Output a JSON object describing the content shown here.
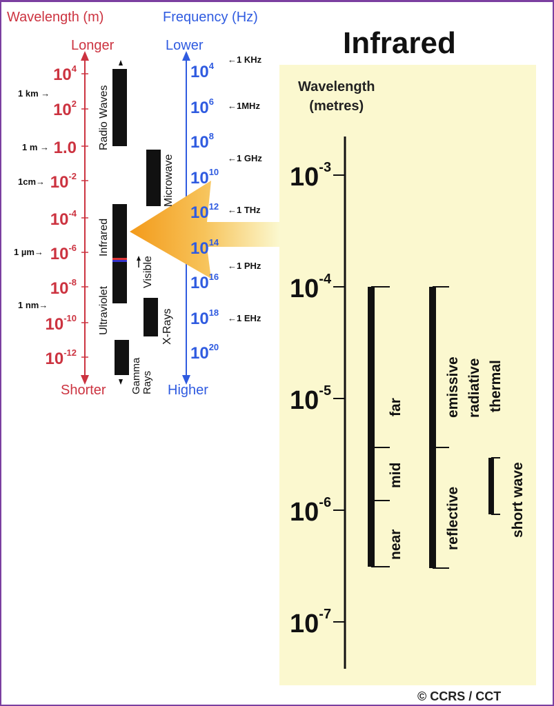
{
  "left": {
    "wavelength_header": "Wavelength (m)",
    "frequency_header": "Frequency (Hz)",
    "longer": "Longer",
    "shorter": "Shorter",
    "lower": "Lower",
    "higher": "Higher",
    "wavelength_ticks": [
      {
        "base": "10",
        "exp": "4"
      },
      {
        "base": "10",
        "exp": "2"
      },
      {
        "base": "1.0",
        "exp": ""
      },
      {
        "base": "10",
        "exp": "-2"
      },
      {
        "base": "10",
        "exp": "-4"
      },
      {
        "base": "10",
        "exp": "-6"
      },
      {
        "base": "10",
        "exp": "-8"
      },
      {
        "base": "10",
        "exp": "-10"
      },
      {
        "base": "10",
        "exp": "-12"
      }
    ],
    "wavelength_markers": [
      "1 km",
      "1 m",
      "1cm",
      "1 µm",
      "1 nm"
    ],
    "frequency_ticks": [
      {
        "base": "10",
        "exp": "4"
      },
      {
        "base": "10",
        "exp": "6"
      },
      {
        "base": "10",
        "exp": "8"
      },
      {
        "base": "10",
        "exp": "10"
      },
      {
        "base": "10",
        "exp": "12"
      },
      {
        "base": "10",
        "exp": "14"
      },
      {
        "base": "10",
        "exp": "16"
      },
      {
        "base": "10",
        "exp": "18"
      },
      {
        "base": "10",
        "exp": "20"
      }
    ],
    "frequency_markers": [
      "1 KHz",
      "1MHz",
      "1 GHz",
      "1 THz",
      "1 PHz",
      "1 EHz"
    ],
    "bands": [
      "Radio Waves",
      "Microwave",
      "Infrared",
      "Visible",
      "Ultraviolet",
      "X-Rays",
      "Gamma Rays"
    ]
  },
  "right": {
    "title": "Infrared",
    "axis_title_line1": "Wavelength",
    "axis_title_line2": "(metres)",
    "ticks": [
      {
        "base": "10",
        "exp": "-3"
      },
      {
        "base": "10",
        "exp": "-4"
      },
      {
        "base": "10",
        "exp": "-5"
      },
      {
        "base": "10",
        "exp": "-6"
      },
      {
        "base": "10",
        "exp": "-7"
      }
    ],
    "group1": [
      "far",
      "mid",
      "near"
    ],
    "group2": [
      "emissive",
      "radiative",
      "thermal",
      "reflective"
    ],
    "group3": [
      "short wave"
    ],
    "credit": "© CCRS / CCT"
  },
  "colors": {
    "wavelength": "#cc3340",
    "frequency": "#2f5be0",
    "panel": "#fbf8cf",
    "arrow": "#f5a623"
  }
}
